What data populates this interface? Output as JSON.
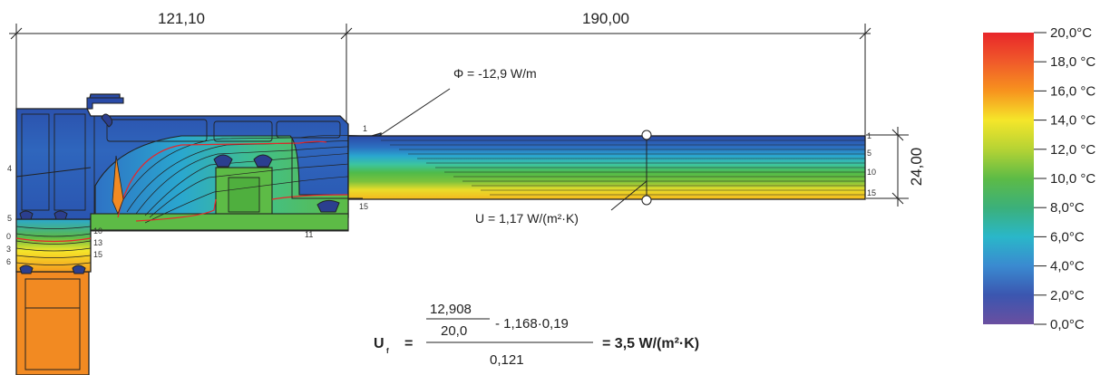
{
  "dimensions": {
    "width_left": "121,10",
    "width_right": "190,00",
    "thickness": "24,00"
  },
  "annotations": {
    "phi": "Φ = -12,9 W/m",
    "u_value": "U = 1,17 W/(m²·K)"
  },
  "isotherm_labels": {
    "panel_right": [
      "1",
      "5",
      "10",
      "15"
    ],
    "frame": [
      "1",
      "4",
      "5",
      "0",
      "3",
      "6",
      "10",
      "13",
      "15",
      "11",
      "15"
    ]
  },
  "formula": {
    "symbol": "U",
    "subscript": "f",
    "equals": "=",
    "numerator_top": "12,908",
    "numerator_bottom": "20,0",
    "numerator_rest": "-  1,168·0,19",
    "denominator": "0,121",
    "result": "=  3,5 W/(m²·K)"
  },
  "color_scale": {
    "labels": [
      "20,0°C",
      "18,0 °C",
      "16,0 °C",
      "14,0 °C",
      "12,0 °C",
      "10,0 °C",
      "8,0°C",
      "6,0°C",
      "4,0°C",
      "2,0°C",
      "0,0°C"
    ],
    "colors": [
      "#e8262a",
      "#f05a2a",
      "#f7931e",
      "#f5e62a",
      "#b5d334",
      "#5dbb46",
      "#3bb07a",
      "#2ab7c9",
      "#3a8ad0",
      "#3b56b0",
      "#6a4fa0"
    ]
  }
}
